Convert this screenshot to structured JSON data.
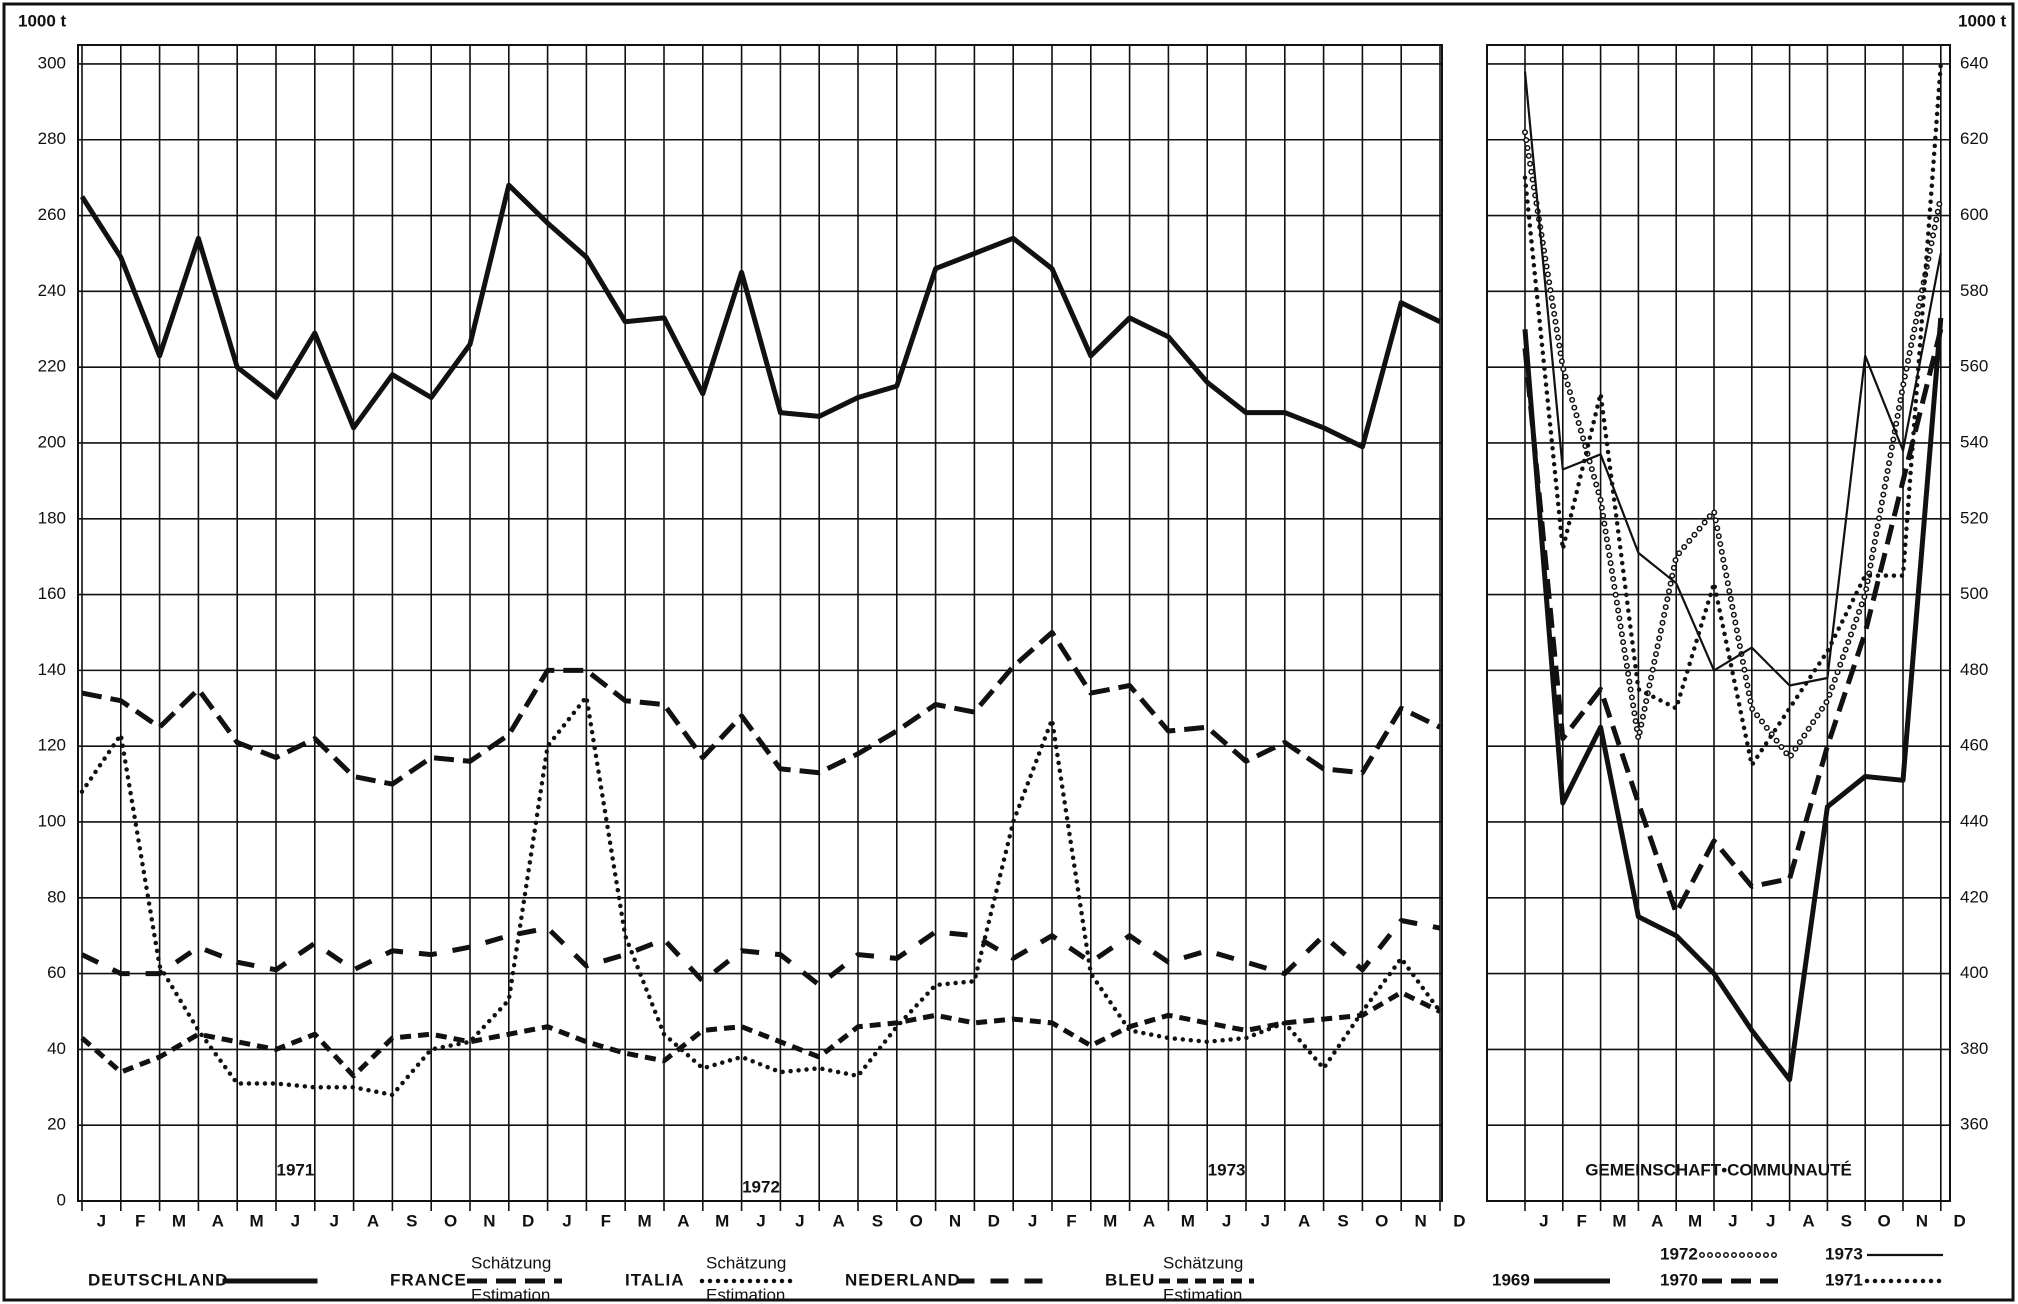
{
  "chart_data": [
    {
      "type": "line",
      "unit_label": "1000 t",
      "categories": [
        "J",
        "F",
        "M",
        "A",
        "M",
        "J",
        "J",
        "A",
        "S",
        "O",
        "N",
        "D",
        "J",
        "F",
        "M",
        "A",
        "M",
        "J",
        "J",
        "A",
        "S",
        "O",
        "N",
        "D",
        "J",
        "F",
        "M",
        "A",
        "M",
        "J",
        "J",
        "A",
        "S",
        "O",
        "N",
        "D"
      ],
      "year_labels": [
        "1971",
        "1972",
        "1973"
      ],
      "ylim": [
        0,
        305
      ],
      "yticks": [
        0,
        20,
        40,
        60,
        80,
        100,
        120,
        140,
        160,
        180,
        200,
        220,
        240,
        260,
        280,
        300
      ],
      "grid": true,
      "estimate_note": [
        "Schätzung",
        "Estimation"
      ],
      "series": [
        {
          "name": "DEUTSCHLAND",
          "color": "#111111",
          "style": "solid",
          "values": [
            265,
            249,
            223,
            254,
            220,
            212,
            229,
            204,
            218,
            212,
            226,
            268,
            258,
            249,
            232,
            233,
            213,
            245,
            208,
            207,
            212,
            215,
            246,
            250,
            254,
            246,
            223,
            233,
            228,
            216,
            208,
            208,
            204,
            199,
            237,
            232
          ]
        },
        {
          "name": "FRANCE",
          "color": "#111111",
          "style": "dashed",
          "estimated": true,
          "values": [
            134,
            132,
            125,
            135,
            121,
            117,
            122,
            112,
            110,
            117,
            116,
            123,
            140,
            140,
            132,
            131,
            117,
            128,
            114,
            113,
            118,
            124,
            131,
            129,
            141,
            150,
            134,
            136,
            124,
            125,
            116,
            121,
            114,
            113,
            130,
            125
          ]
        },
        {
          "name": "ITALIA",
          "color": "#111111",
          "style": "dotted",
          "estimated": true,
          "values": [
            108,
            123,
            62,
            45,
            31,
            31,
            30,
            30,
            28,
            40,
            42,
            53,
            120,
            133,
            70,
            44,
            35,
            38,
            34,
            35,
            33,
            46,
            57,
            58,
            100,
            127,
            60,
            45,
            43,
            42,
            43,
            47,
            35,
            50,
            64,
            50
          ]
        },
        {
          "name": "NEDERLAND",
          "color": "#111111",
          "style": "dashdot",
          "values": [
            65,
            60,
            60,
            67,
            63,
            61,
            68,
            61,
            66,
            65,
            67,
            70,
            72,
            62,
            65,
            69,
            58,
            66,
            65,
            57,
            65,
            64,
            71,
            70,
            64,
            70,
            63,
            70,
            63,
            66,
            63,
            60,
            70,
            61,
            74,
            72
          ]
        },
        {
          "name": "BLEU",
          "color": "#111111",
          "style": "shortdash",
          "estimated": true,
          "values": [
            43,
            34,
            38,
            44,
            42,
            40,
            44,
            33,
            43,
            44,
            42,
            44,
            46,
            42,
            39,
            37,
            45,
            46,
            42,
            38,
            46,
            47,
            49,
            47,
            48,
            47,
            41,
            46,
            49,
            47,
            45,
            47,
            48,
            49,
            55,
            50
          ]
        }
      ]
    },
    {
      "type": "line",
      "unit_label": "1000 t",
      "title": "GEMEINSCHAFT•COMMUNAUTÉ",
      "categories": [
        "J",
        "F",
        "M",
        "A",
        "M",
        "J",
        "J",
        "A",
        "S",
        "O",
        "N",
        "D"
      ],
      "ylim": [
        340,
        645
      ],
      "yticks": [
        360,
        380,
        400,
        420,
        440,
        460,
        480,
        500,
        520,
        540,
        560,
        580,
        600,
        620,
        640
      ],
      "grid": true,
      "series": [
        {
          "name": "1969",
          "color": "#111111",
          "style": "solid",
          "values": [
            570,
            445,
            465,
            415,
            410,
            400,
            385,
            372,
            444,
            452,
            451,
            573
          ]
        },
        {
          "name": "1972",
          "color": "#111111",
          "style": "circles",
          "values": [
            622,
            560,
            525,
            462,
            510,
            522,
            470,
            457,
            472,
            500,
            555,
            605
          ]
        },
        {
          "name": "1970",
          "color": "#111111",
          "style": "dashed",
          "values": [
            565,
            462,
            475,
            445,
            416,
            435,
            423,
            425,
            460,
            490,
            530,
            570
          ]
        },
        {
          "name": "1973",
          "color": "#111111",
          "style": "thin",
          "values": [
            638,
            533,
            537,
            511,
            503,
            480,
            486,
            476,
            478,
            563,
            538,
            590
          ]
        },
        {
          "name": "1971",
          "color": "#111111",
          "style": "dotted",
          "values": [
            610,
            512,
            553,
            475,
            470,
            503,
            455,
            470,
            485,
            505,
            505,
            640
          ]
        }
      ]
    }
  ]
}
